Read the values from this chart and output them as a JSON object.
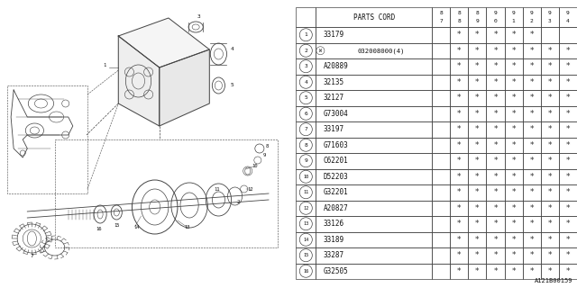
{
  "bg_color": "#ffffff",
  "diagram_ref": "A121B00159",
  "line_color": "#444444",
  "text_color": "#111111",
  "star_color": "#333333",
  "table": {
    "header_col": "PARTS CORD",
    "year_cols": [
      "87",
      "88",
      "89",
      "90",
      "91",
      "92",
      "93",
      "94"
    ],
    "rows": [
      {
        "num": "1",
        "code": "33179",
        "stars": [
          0,
          1,
          1,
          1,
          1,
          1,
          0,
          0
        ]
      },
      {
        "num": "2",
        "code": "W 032008000(4)",
        "stars": [
          0,
          1,
          1,
          1,
          1,
          1,
          1,
          1
        ]
      },
      {
        "num": "3",
        "code": "A20889",
        "stars": [
          0,
          1,
          1,
          1,
          1,
          1,
          1,
          1
        ]
      },
      {
        "num": "4",
        "code": "32135",
        "stars": [
          0,
          1,
          1,
          1,
          1,
          1,
          1,
          1
        ]
      },
      {
        "num": "5",
        "code": "32127",
        "stars": [
          0,
          1,
          1,
          1,
          1,
          1,
          1,
          1
        ]
      },
      {
        "num": "6",
        "code": "G73004",
        "stars": [
          0,
          1,
          1,
          1,
          1,
          1,
          1,
          1
        ]
      },
      {
        "num": "7",
        "code": "33197",
        "stars": [
          0,
          1,
          1,
          1,
          1,
          1,
          1,
          1
        ]
      },
      {
        "num": "8",
        "code": "G71603",
        "stars": [
          0,
          1,
          1,
          1,
          1,
          1,
          1,
          1
        ]
      },
      {
        "num": "9",
        "code": "C62201",
        "stars": [
          0,
          1,
          1,
          1,
          1,
          1,
          1,
          1
        ]
      },
      {
        "num": "10",
        "code": "D52203",
        "stars": [
          0,
          1,
          1,
          1,
          1,
          1,
          1,
          1
        ]
      },
      {
        "num": "11",
        "code": "G32201",
        "stars": [
          0,
          1,
          1,
          1,
          1,
          1,
          1,
          1
        ]
      },
      {
        "num": "12",
        "code": "A20827",
        "stars": [
          0,
          1,
          1,
          1,
          1,
          1,
          1,
          1
        ]
      },
      {
        "num": "13",
        "code": "33126",
        "stars": [
          0,
          1,
          1,
          1,
          1,
          1,
          1,
          1
        ]
      },
      {
        "num": "14",
        "code": "33189",
        "stars": [
          0,
          1,
          1,
          1,
          1,
          1,
          1,
          1
        ]
      },
      {
        "num": "15",
        "code": "33287",
        "stars": [
          0,
          1,
          1,
          1,
          1,
          1,
          1,
          1
        ]
      },
      {
        "num": "16",
        "code": "G32505",
        "stars": [
          0,
          1,
          1,
          1,
          1,
          1,
          1,
          1
        ]
      }
    ]
  }
}
